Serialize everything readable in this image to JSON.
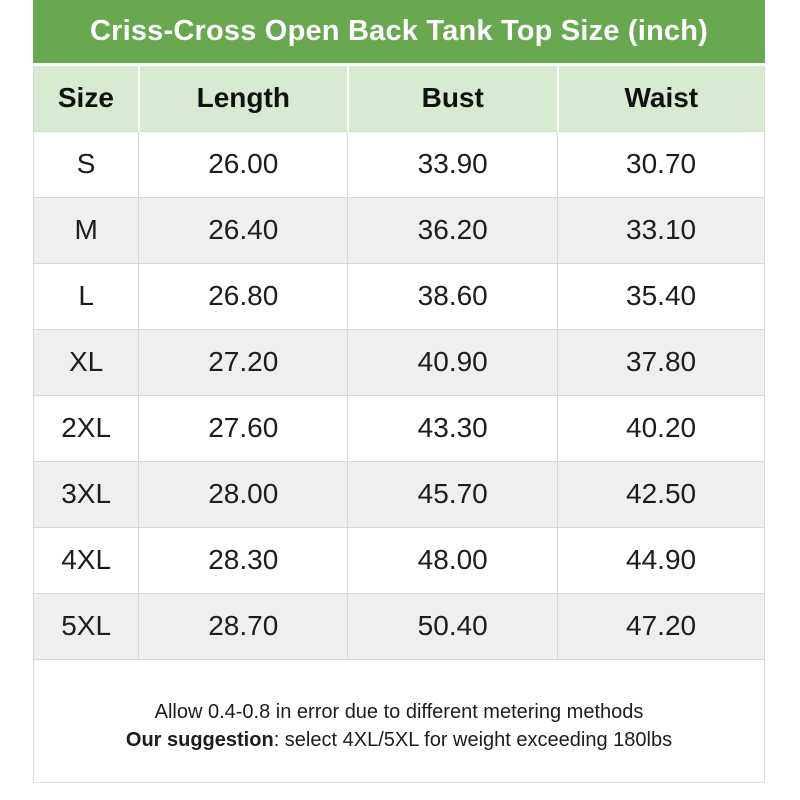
{
  "title": "Criss-Cross Open Back Tank Top Size (inch)",
  "chart_data": {
    "type": "table",
    "title": "Criss-Cross Open Back Tank Top Size (inch)",
    "unit": "inch",
    "columns": [
      "Size",
      "Length",
      "Bust",
      "Waist"
    ],
    "rows": [
      [
        "S",
        "26.00",
        "33.90",
        "30.70"
      ],
      [
        "M",
        "26.40",
        "36.20",
        "33.10"
      ],
      [
        "L",
        "26.80",
        "38.60",
        "35.40"
      ],
      [
        "XL",
        "27.20",
        "40.90",
        "37.80"
      ],
      [
        "2XL",
        "27.60",
        "43.30",
        "40.20"
      ],
      [
        "3XL",
        "28.00",
        "45.70",
        "42.50"
      ],
      [
        "4XL",
        "28.30",
        "48.00",
        "44.90"
      ],
      [
        "5XL",
        "28.70",
        "50.40",
        "47.20"
      ]
    ],
    "layout": {
      "grid": "on",
      "row_striping": "alternating white and gray",
      "header_position": "top"
    }
  },
  "footer": {
    "line1": "Allow 0.4-0.8 in error due to different metering methods",
    "line2_bold": "Our suggestion",
    "line2_rest": ": select 4XL/5XL for weight exceeding 180lbs"
  },
  "colors": {
    "title_bar_green": "#6aa84f",
    "title_text": "#ffffff",
    "header_row_green": "#d9ead3",
    "row_alt_gray": "#efefef",
    "row_white": "#ffffff",
    "border_gray": "#d9d9d9",
    "text_dark": "#1d1d1d"
  }
}
